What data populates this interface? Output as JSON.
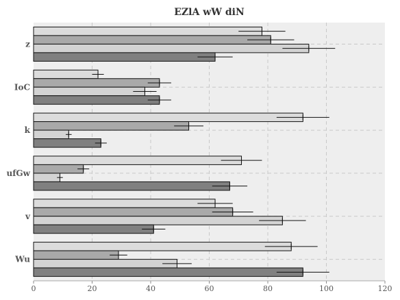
{
  "chart_data": {
    "type": "bar",
    "orientation": "horizontal",
    "title": "EZlA wW diN",
    "xlabel": "",
    "ylabel": "",
    "xlim": [
      0,
      120
    ],
    "x_ticks": [
      "0",
      "20",
      "40",
      "60",
      "80",
      "100",
      "120"
    ],
    "categories": [
      "Wu",
      "v",
      "ufGw",
      "k",
      "IoC",
      "z"
    ],
    "grid": true,
    "series": [
      {
        "color": "#dcdcdc",
        "values": [
          88,
          62,
          71,
          92,
          22,
          78
        ],
        "errors": [
          9,
          6,
          7,
          9,
          2,
          8
        ]
      },
      {
        "color": "#a9a9a9",
        "values": [
          29,
          68,
          17,
          53,
          43,
          81
        ],
        "errors": [
          3,
          7,
          2,
          5,
          4,
          8
        ]
      },
      {
        "color": "#d3d3d3",
        "values": [
          49,
          85,
          9,
          12,
          38,
          94
        ],
        "errors": [
          5,
          8,
          1,
          1,
          4,
          9
        ]
      },
      {
        "color": "#808080",
        "values": [
          92,
          41,
          67,
          23,
          43,
          62
        ],
        "errors": [
          9,
          4,
          6,
          2,
          4,
          6
        ]
      }
    ]
  }
}
